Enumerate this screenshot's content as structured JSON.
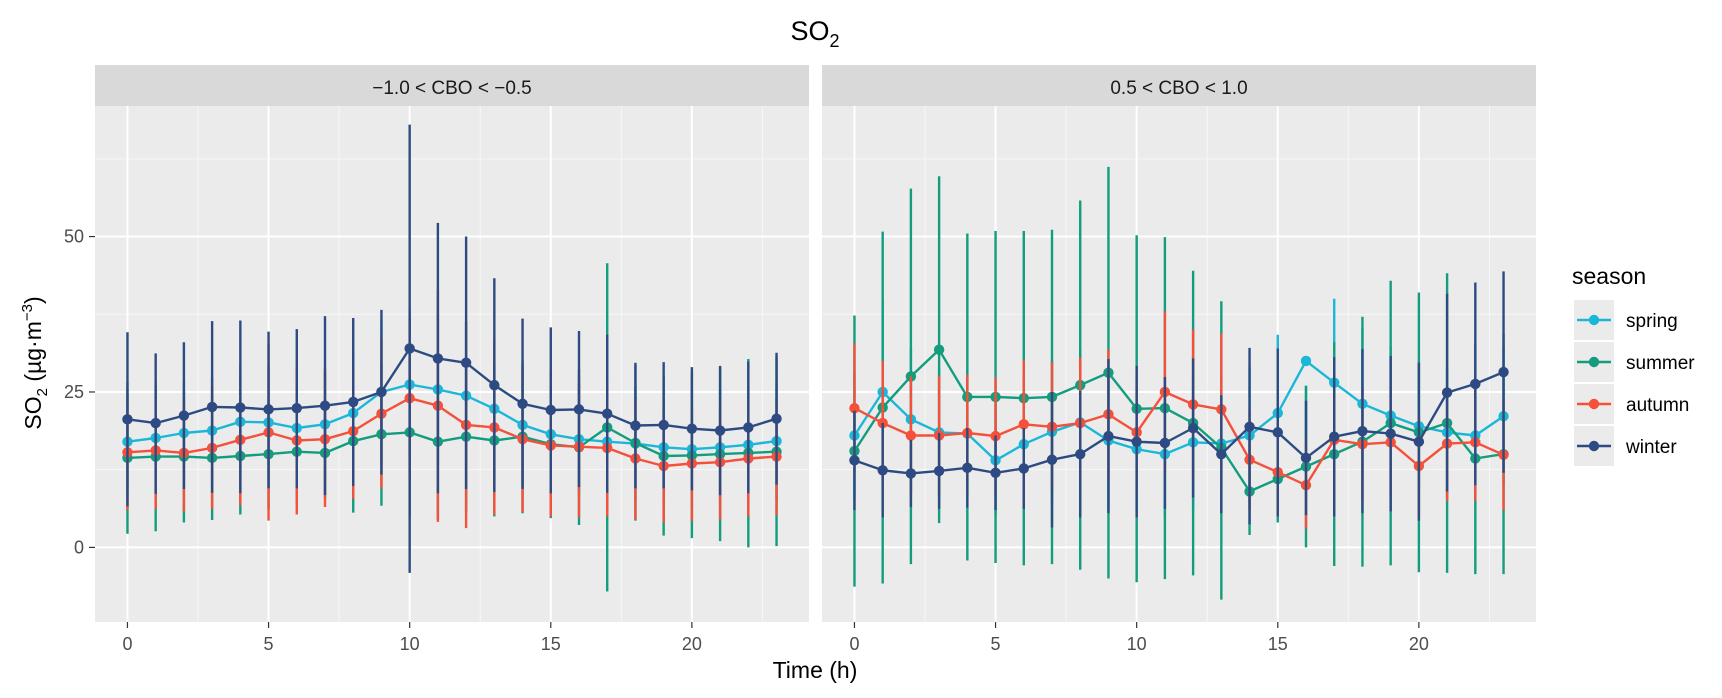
{
  "chart_data": {
    "type": "line",
    "title": "SO",
    "title_sub": "2",
    "xlabel": "Time (h)",
    "ylabel_prefix": "SO",
    "ylabel_sub": "2",
    "ylabel_unit": " (µg·m",
    "ylabel_sup": "−3",
    "ylabel_close": ")",
    "xlim": [
      -1.15,
      24.15
    ],
    "ylim": [
      -12,
      71
    ],
    "x_ticks": [
      0,
      5,
      10,
      15,
      20
    ],
    "x_tick_labels": [
      "0",
      "5",
      "10",
      "15",
      "20"
    ],
    "y_ticks": [
      0,
      25,
      50
    ],
    "y_tick_labels": [
      "0",
      "25",
      "50"
    ],
    "legend": {
      "title": "season",
      "position": "right",
      "entries": [
        "spring",
        "summer",
        "autumn",
        "winter"
      ]
    },
    "colors": {
      "spring": "#1AB7D9",
      "summer": "#139C7E",
      "autumn": "#F4503A",
      "winter": "#2D4B82"
    },
    "x": [
      0,
      1,
      2,
      3,
      4,
      5,
      6,
      7,
      8,
      9,
      10,
      11,
      12,
      13,
      14,
      15,
      16,
      17,
      18,
      19,
      20,
      21,
      22,
      23
    ],
    "panels": [
      {
        "label": "−1.0 < CBO < −0.5",
        "series": [
          {
            "name": "spring",
            "values": [
              17.0,
              17.6,
              18.4,
              18.8,
              20.2,
              20.1,
              19.2,
              19.8,
              21.6,
              25.0,
              26.2,
              25.4,
              24.4,
              22.3,
              19.7,
              18.2,
              17.4,
              17.0,
              16.7,
              16.1,
              15.8,
              16.1,
              16.5,
              17.1
            ],
            "lower": [
              8.5,
              9.2,
              10.0,
              10.3,
              11.0,
              11.0,
              10.5,
              10.8,
              11.5,
              13.5,
              14.0,
              13.2,
              12.5,
              11.5,
              10.0,
              9.0,
              8.5,
              8.0,
              7.5,
              7.0,
              6.5,
              6.8,
              7.2,
              7.6
            ],
            "upper": [
              25.5,
              26.0,
              26.8,
              27.3,
              29.4,
              29.2,
              27.9,
              28.8,
              31.7,
              36.5,
              38.4,
              37.6,
              36.3,
              33.1,
              29.4,
              27.4,
              26.3,
              26.0,
              25.9,
              25.2,
              25.1,
              25.4,
              25.8,
              26.6
            ]
          },
          {
            "name": "summer",
            "values": [
              14.4,
              14.6,
              14.6,
              14.4,
              14.7,
              15.0,
              15.4,
              15.2,
              17.1,
              18.2,
              18.5,
              17.0,
              17.8,
              17.2,
              17.8,
              16.6,
              16.1,
              19.3,
              16.8,
              14.7,
              14.8,
              15.0,
              15.2,
              15.4
            ],
            "lower": [
              2.2,
              2.6,
              4.0,
              4.4,
              5.3,
              6.2,
              7.0,
              7.9,
              5.6,
              6.7,
              5.0,
              4.5,
              5.8,
              5.0,
              5.5,
              4.7,
              3.6,
              -7.1,
              4.3,
              1.9,
              1.5,
              1.0,
              0.0,
              0.2
            ],
            "upper": [
              26.6,
              26.6,
              25.2,
              24.4,
              24.1,
              23.8,
              23.8,
              22.5,
              28.6,
              29.7,
              32.0,
              29.5,
              29.8,
              29.4,
              30.1,
              28.5,
              28.6,
              45.7,
              29.3,
              27.5,
              28.1,
              29.0,
              30.3,
              30.6
            ]
          },
          {
            "name": "autumn",
            "values": [
              15.3,
              15.6,
              15.2,
              16.0,
              17.3,
              18.5,
              17.2,
              17.4,
              18.7,
              21.5,
              24.0,
              22.8,
              19.7,
              19.3,
              17.4,
              16.4,
              16.2,
              16.0,
              14.3,
              13.1,
              13.5,
              13.7,
              14.3,
              14.6
            ],
            "lower": [
              6.0,
              6.2,
              5.8,
              6.2,
              6.8,
              4.3,
              5.3,
              6.5,
              7.8,
              9.5,
              11.0,
              4.1,
              3.1,
              5.3,
              5.7,
              5.0,
              4.8,
              5.0,
              4.5,
              4.0,
              4.2,
              4.5,
              5.0,
              5.2
            ],
            "upper": [
              24.6,
              25.0,
              24.6,
              25.8,
              27.8,
              32.7,
              29.1,
              28.3,
              29.6,
              33.5,
              37.0,
              41.5,
              36.3,
              33.3,
              29.1,
              27.8,
              27.6,
              27.0,
              24.1,
              22.2,
              22.8,
              22.9,
              23.6,
              24.0
            ]
          },
          {
            "name": "winter",
            "values": [
              20.6,
              20.0,
              21.2,
              22.6,
              22.5,
              22.2,
              22.4,
              22.8,
              23.4,
              25.0,
              32.0,
              30.4,
              29.7,
              26.1,
              23.1,
              22.1,
              22.2,
              21.5,
              19.6,
              19.7,
              19.1,
              18.8,
              19.3,
              20.7
            ],
            "lower": [
              6.6,
              8.6,
              9.4,
              8.8,
              8.7,
              9.5,
              9.5,
              8.4,
              9.9,
              11.7,
              -4.1,
              8.7,
              9.4,
              8.9,
              9.4,
              8.7,
              9.7,
              8.8,
              9.5,
              9.5,
              9.2,
              8.4,
              8.7,
              10.1
            ],
            "upper": [
              34.6,
              31.2,
              33.0,
              36.4,
              36.5,
              34.7,
              35.1,
              37.2,
              36.9,
              38.2,
              68.0,
              52.2,
              50.0,
              43.3,
              36.8,
              35.4,
              34.8,
              34.2,
              29.7,
              29.8,
              29.0,
              29.2,
              29.9,
              31.3
            ]
          }
        ]
      },
      {
        "label": "0.5 < CBO < 1.0",
        "series": [
          {
            "name": "spring",
            "values": [
              18.0,
              25.0,
              20.6,
              18.5,
              18.3,
              14.0,
              16.6,
              18.6,
              20.1,
              17.2,
              15.8,
              15.0,
              16.9,
              16.7,
              18.0,
              21.6,
              30.0,
              26.5,
              23.1,
              21.2,
              19.5,
              18.5,
              18.0,
              21.1
            ],
            "lower": [
              8.0,
              10.0,
              9.0,
              8.0,
              8.0,
              5.0,
              6.0,
              7.0,
              8.0,
              6.0,
              5.5,
              5.0,
              6.0,
              6.0,
              7.0,
              9.0,
              17.0,
              13.0,
              11.0,
              10.0,
              9.0,
              8.0,
              8.0,
              10.0
            ],
            "upper": [
              28.0,
              40.0,
              32.2,
              29.0,
              28.6,
              23.0,
              27.2,
              30.2,
              32.2,
              28.4,
              26.1,
              25.0,
              27.8,
              27.4,
              29.0,
              34.2,
              26.0,
              40.0,
              35.2,
              32.4,
              30.0,
              29.0,
              28.0,
              32.2
            ]
          },
          {
            "name": "summer",
            "values": [
              15.5,
              22.5,
              27.5,
              31.8,
              24.2,
              24.2,
              24.0,
              24.2,
              26.1,
              28.1,
              22.3,
              22.4,
              20.0,
              16.0,
              9.0,
              11.0,
              13.0,
              15.0,
              17.0,
              20.0,
              18.5,
              20.0,
              14.3,
              15.0
            ],
            "lower": [
              -6.3,
              -5.8,
              -2.7,
              3.9,
              -2.1,
              -2.5,
              -2.9,
              -2.7,
              -3.6,
              -5.0,
              -5.6,
              -5.1,
              -4.5,
              -8.4,
              2.0,
              4.0,
              0.0,
              -3.0,
              -3.1,
              -2.9,
              -4.0,
              -4.1,
              -4.3,
              -4.3
            ],
            "upper": [
              37.3,
              50.8,
              57.7,
              59.7,
              50.5,
              50.9,
              50.9,
              51.1,
              55.8,
              61.2,
              50.2,
              49.9,
              44.5,
              39.6,
              18.0,
              18.0,
              26.0,
              33.0,
              37.1,
              42.9,
              41.0,
              44.1,
              32.9,
              34.3
            ]
          },
          {
            "name": "autumn",
            "values": [
              22.4,
              20.0,
              18.0,
              18.0,
              18.4,
              17.9,
              19.8,
              19.4,
              20.0,
              21.4,
              18.5,
              25.0,
              23.0,
              22.2,
              14.1,
              12.1,
              10.0,
              17.3,
              16.6,
              16.9,
              13.1,
              16.7,
              16.9,
              14.9
            ],
            "lower": [
              12.0,
              10.0,
              8.5,
              8.5,
              9.0,
              8.5,
              9.5,
              9.0,
              9.5,
              11.0,
              9.0,
              12.0,
              11.0,
              10.0,
              6.0,
              5.0,
              3.0,
              8.0,
              7.5,
              8.0,
              5.0,
              7.5,
              7.5,
              6.0
            ],
            "upper": [
              32.8,
              30.0,
              27.5,
              27.5,
              27.8,
              27.3,
              30.1,
              29.8,
              30.5,
              31.8,
              28.0,
              38.0,
              35.0,
              34.4,
              22.2,
              19.2,
              17.0,
              26.6,
              25.7,
              25.8,
              21.2,
              25.9,
              26.3,
              23.8
            ]
          },
          {
            "name": "winter",
            "values": [
              14.0,
              12.4,
              11.9,
              12.3,
              12.8,
              12.0,
              12.7,
              14.1,
              15.0,
              17.9,
              17.0,
              16.8,
              19.2,
              15.0,
              19.4,
              18.5,
              14.4,
              17.8,
              18.7,
              18.3,
              17.0,
              24.9,
              26.3,
              28.2
            ],
            "lower": [
              6.0,
              4.8,
              6.5,
              6.2,
              6.4,
              6.0,
              6.2,
              3.2,
              4.8,
              5.5,
              4.8,
              6.2,
              8.0,
              5.5,
              3.7,
              5.0,
              5.2,
              5.0,
              5.5,
              5.8,
              4.3,
              9.0,
              10.0,
              12.0
            ],
            "upper": [
              22.0,
              20.0,
              17.3,
              18.4,
              19.2,
              18.0,
              19.2,
              25.0,
              25.2,
              30.3,
              29.2,
              27.4,
              30.4,
              24.5,
              32.1,
              32.0,
              23.6,
              30.6,
              31.9,
              30.8,
              29.7,
              40.8,
              42.6,
              44.4
            ]
          }
        ]
      }
    ]
  }
}
